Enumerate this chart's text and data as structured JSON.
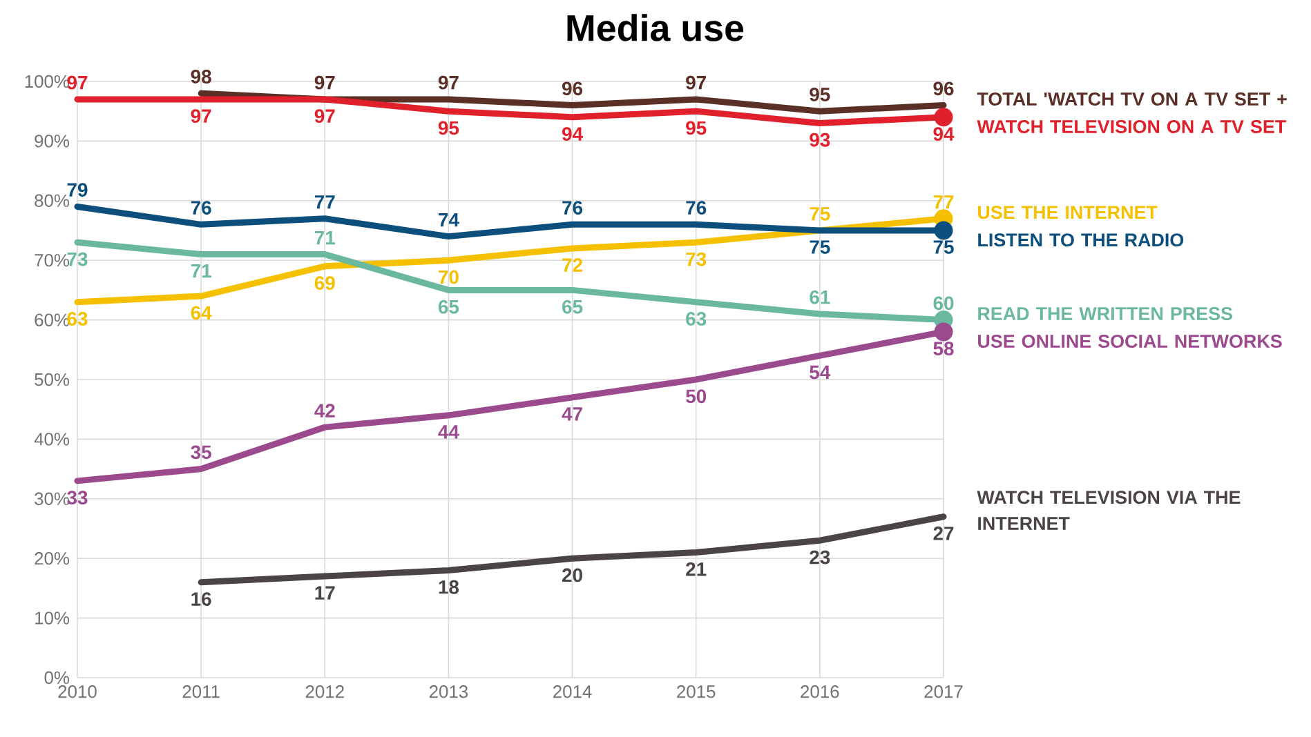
{
  "chart_data": {
    "type": "line",
    "title": "Media use",
    "x": [
      2010,
      2011,
      2012,
      2013,
      2014,
      2015,
      2016,
      2017
    ],
    "series": [
      {
        "name": "TOTAL 'WATCH TV ON A TV SET +",
        "color": "#5a2f26",
        "values": [
          null,
          98,
          97,
          97,
          96,
          97,
          95,
          96
        ]
      },
      {
        "name": "WATCH TELEVISION ON A TV SET",
        "color": "#e0202b",
        "values": [
          97,
          97,
          97,
          95,
          94,
          95,
          93,
          94
        ]
      },
      {
        "name": "USE THE INTERNET",
        "color": "#f5c000",
        "values": [
          63,
          64,
          69,
          70,
          72,
          73,
          75,
          77
        ]
      },
      {
        "name": "LISTEN TO THE RADIO",
        "color": "#0d4f7c",
        "values": [
          79,
          76,
          77,
          74,
          76,
          76,
          75,
          75
        ]
      },
      {
        "name": "READ THE WRITTEN PRESS",
        "color": "#6bb8a0",
        "values": [
          73,
          71,
          71,
          65,
          65,
          63,
          61,
          60
        ]
      },
      {
        "name": "USE ONLINE SOCIAL NETWORKS",
        "color": "#9b4a8e",
        "values": [
          33,
          35,
          42,
          44,
          47,
          50,
          54,
          58
        ]
      },
      {
        "name": "WATCH TELEVISION VIA THE INTERNET",
        "color": "#4a4446",
        "values": [
          null,
          16,
          17,
          18,
          20,
          21,
          23,
          27
        ]
      }
    ],
    "xlim": [
      2010,
      2017
    ],
    "ylim": [
      0,
      100
    ],
    "xticks": [
      2010,
      2011,
      2012,
      2013,
      2014,
      2015,
      2016,
      2017
    ],
    "yticks": [
      {
        "value": 0,
        "label": "0%"
      },
      {
        "value": 10,
        "label": "10%"
      },
      {
        "value": 20,
        "label": "20%"
      },
      {
        "value": 30,
        "label": "30%"
      },
      {
        "value": 40,
        "label": "40%"
      },
      {
        "value": 50,
        "label": "50%"
      },
      {
        "value": 60,
        "label": "60%"
      },
      {
        "value": 70,
        "label": "70%"
      },
      {
        "value": 80,
        "label": "80%"
      },
      {
        "value": 90,
        "label": "90%"
      },
      {
        "value": 100,
        "label": "100%"
      }
    ],
    "grid": true,
    "data_labels": true
  }
}
